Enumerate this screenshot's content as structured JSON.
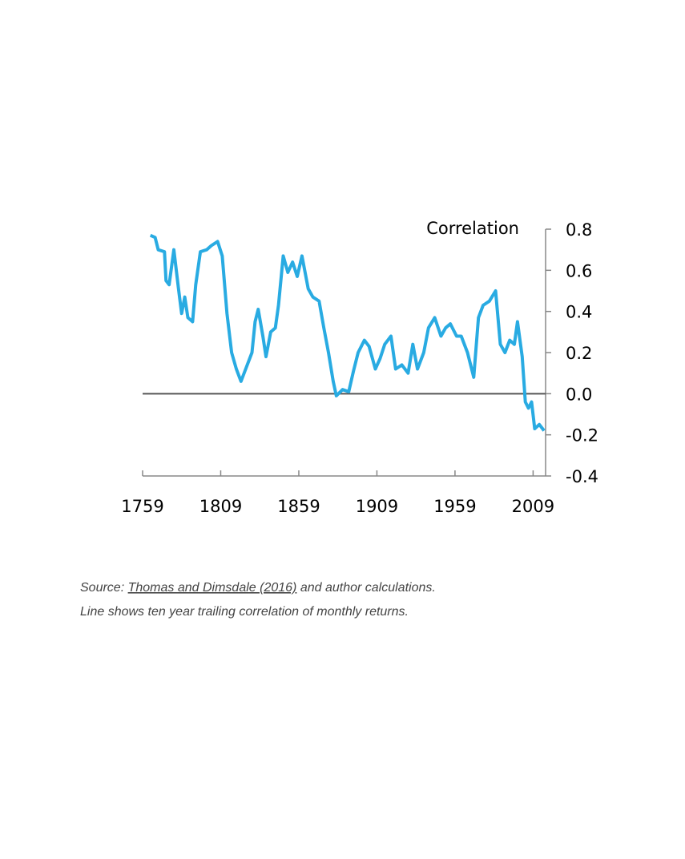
{
  "chart_data": {
    "type": "line",
    "y_label": "Correlation",
    "source": {
      "text": "Source:",
      "link": "Thomas and Dimsdale (2016)",
      "rest": "and author calculations."
    },
    "note": "Line shows ten year trailing correlation of monthly returns.",
    "xlim": [
      1759,
      2017
    ],
    "xticks": [
      1759,
      1809,
      1859,
      1909,
      1959,
      2009
    ],
    "ylim": [
      -0.4,
      0.8
    ],
    "yticks": [
      0.8,
      0.6,
      0.4,
      0.2,
      {
        "value": 0,
        "label": "0.0"
      },
      -0.2,
      -0.4
    ],
    "zero_line": true,
    "series": [
      {
        "name": "Correlation",
        "color": "#29abe2",
        "x": [
          1764,
          1767,
          1769,
          1773,
          1774,
          1776,
          1779,
          1782,
          1784,
          1786,
          1788,
          1791,
          1793,
          1796,
          1800,
          1803,
          1807,
          1810,
          1813,
          1816,
          1819,
          1822,
          1826,
          1829,
          1831,
          1833,
          1836,
          1838,
          1841,
          1844,
          1846,
          1849,
          1852,
          1855,
          1858,
          1861,
          1865,
          1868,
          1872,
          1875,
          1878,
          1881,
          1883,
          1887,
          1891,
          1894,
          1897,
          1901,
          1904,
          1908,
          1911,
          1914,
          1918,
          1921,
          1925,
          1929,
          1932,
          1935,
          1939,
          1942,
          1946,
          1950,
          1953,
          1956,
          1960,
          1963,
          1967,
          1971,
          1974,
          1977,
          1981,
          1985,
          1988,
          1991,
          1994,
          1997,
          1999,
          2002,
          2004,
          2006,
          2008,
          2010,
          2013,
          2016
        ],
        "values": [
          0.77,
          0.76,
          0.7,
          0.69,
          0.55,
          0.53,
          0.7,
          0.51,
          0.39,
          0.47,
          0.37,
          0.35,
          0.53,
          0.69,
          0.7,
          0.72,
          0.74,
          0.67,
          0.39,
          0.2,
          0.12,
          0.06,
          0.14,
          0.2,
          0.35,
          0.41,
          0.28,
          0.18,
          0.3,
          0.32,
          0.43,
          0.67,
          0.59,
          0.64,
          0.57,
          0.67,
          0.51,
          0.47,
          0.45,
          0.32,
          0.2,
          0.06,
          -0.01,
          0.02,
          0.01,
          0.11,
          0.2,
          0.26,
          0.23,
          0.12,
          0.17,
          0.24,
          0.28,
          0.12,
          0.14,
          0.1,
          0.24,
          0.12,
          0.2,
          0.32,
          0.37,
          0.28,
          0.32,
          0.34,
          0.28,
          0.28,
          0.2,
          0.08,
          0.37,
          0.43,
          0.45,
          0.5,
          0.24,
          0.2,
          0.26,
          0.24,
          0.35,
          0.18,
          -0.04,
          -0.07,
          -0.04,
          -0.17,
          -0.15,
          -0.18
        ]
      }
    ]
  }
}
